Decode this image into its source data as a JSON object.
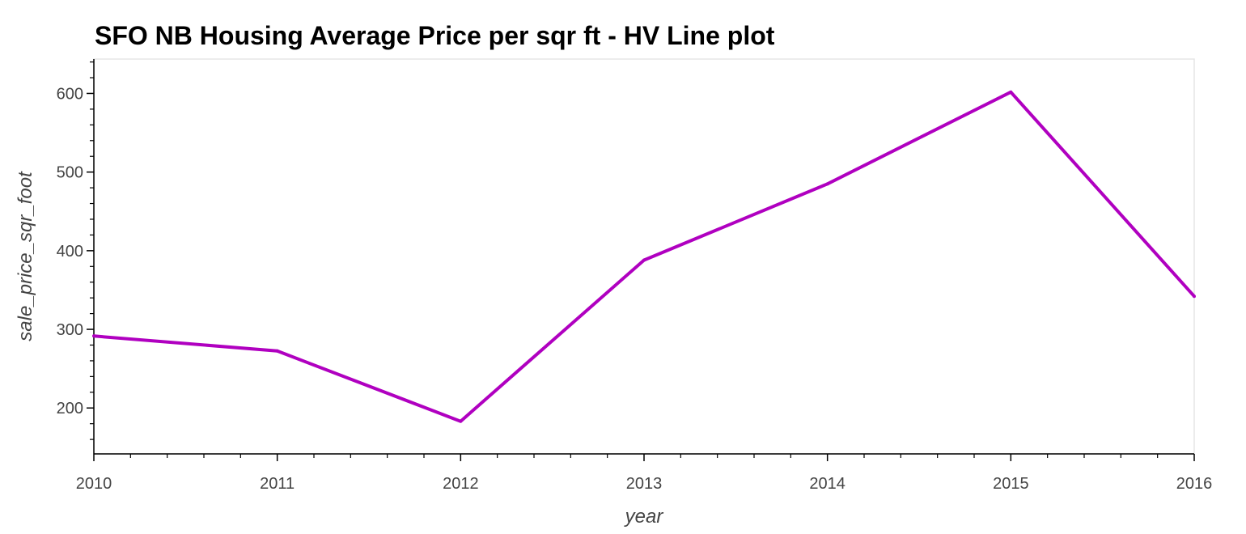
{
  "chart_data": {
    "type": "line",
    "title": "SFO NB Housing Average Price per sqr ft - HV Line plot",
    "xlabel": "year",
    "ylabel": "sale_price_sqr_foot",
    "x": [
      2010,
      2011,
      2012,
      2013,
      2014,
      2015,
      2016
    ],
    "series": [
      {
        "values": [
          291.5,
          272.5,
          183.1,
          388.0,
          484.9,
          601.7,
          342.0
        ]
      }
    ],
    "xlim": [
      2010,
      2016
    ],
    "ylim": [
      141.6,
      643.7
    ],
    "x_ticks": [
      2010,
      2011,
      2012,
      2013,
      2014,
      2015,
      2016
    ],
    "y_ticks": [
      200,
      300,
      400,
      500,
      600
    ],
    "grid": false,
    "line_color": "#b000c0",
    "axis_color": "#000000",
    "frame_color": "#e5e5e5",
    "tick_label_color": "#444444"
  }
}
